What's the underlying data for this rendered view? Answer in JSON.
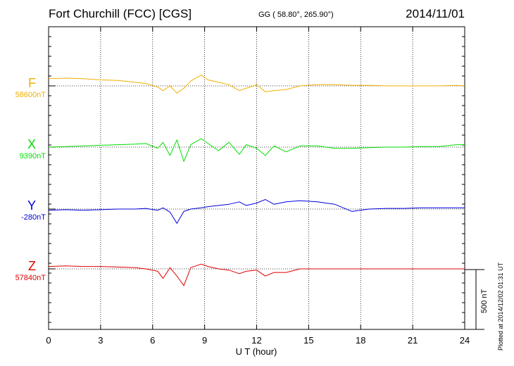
{
  "header": {
    "title": "Fort Churchill (FCC)  [CGS]",
    "coords": "GG ( 58.80°, 265.90°)",
    "date": "2014/11/01"
  },
  "footer_note": "Plotted at 2014/12/02 01:31  UT",
  "chart_data": {
    "type": "line",
    "xlabel": "U T (hour)",
    "xlim": [
      0,
      24
    ],
    "xticks": [
      0,
      3,
      6,
      9,
      12,
      15,
      18,
      21,
      24
    ],
    "grid": "dotted vertical at 3-hour intervals",
    "scale_bar": {
      "value": 500,
      "unit": "nT",
      "label": "500 nT"
    },
    "series": [
      {
        "name": "F",
        "baseline_label": "58600nT",
        "color": "#f0b000",
        "x": [
          0,
          1,
          2,
          3,
          4,
          5,
          5.6,
          6.3,
          6.6,
          7.0,
          7.4,
          7.8,
          8.2,
          8.8,
          9.2,
          9.8,
          10.4,
          11.0,
          11.4,
          12.0,
          12.5,
          13.0,
          13.7,
          14.5,
          15.5,
          16.5,
          17.5,
          18.5,
          19.5,
          20.5,
          21.5,
          22.5,
          23.5,
          24
        ],
        "values": [
          60,
          65,
          60,
          50,
          45,
          30,
          20,
          -10,
          -40,
          0,
          -60,
          -20,
          40,
          90,
          50,
          30,
          10,
          -40,
          -20,
          10,
          -50,
          -40,
          -30,
          0,
          10,
          10,
          5,
          5,
          0,
          0,
          0,
          0,
          5,
          0
        ]
      },
      {
        "name": "X",
        "baseline_label": "9390nT",
        "color": "#00dd00",
        "x": [
          0,
          1,
          2,
          3,
          4,
          5,
          5.6,
          6.3,
          6.6,
          7.0,
          7.4,
          7.8,
          8.2,
          8.8,
          9.2,
          9.8,
          10.4,
          11.0,
          11.4,
          12.0,
          12.5,
          13.0,
          13.7,
          14.5,
          15.5,
          16.5,
          17.5,
          18.5,
          19.5,
          20.5,
          21.5,
          22.5,
          23.5,
          24
        ],
        "values": [
          0,
          5,
          10,
          15,
          20,
          25,
          30,
          -10,
          40,
          -70,
          60,
          -120,
          20,
          70,
          30,
          -30,
          40,
          -60,
          20,
          -10,
          -70,
          10,
          -40,
          10,
          10,
          -10,
          -10,
          -5,
          0,
          0,
          5,
          5,
          20,
          20
        ]
      },
      {
        "name": "Y",
        "baseline_label": "-280nT",
        "color": "#0000dd",
        "x": [
          0,
          1,
          2,
          3,
          4,
          5,
          5.6,
          6.3,
          6.6,
          7.0,
          7.4,
          7.8,
          8.2,
          8.8,
          9.2,
          9.8,
          10.4,
          11.0,
          11.4,
          12.0,
          12.5,
          13.0,
          13.7,
          14.5,
          15.5,
          16.5,
          17.5,
          18.5,
          19.5,
          20.5,
          21.5,
          22.5,
          23.5,
          24
        ],
        "values": [
          -10,
          -5,
          -10,
          -5,
          0,
          0,
          5,
          -10,
          10,
          -25,
          -120,
          -20,
          0,
          10,
          20,
          30,
          40,
          60,
          30,
          50,
          80,
          40,
          60,
          70,
          60,
          40,
          -20,
          0,
          5,
          5,
          10,
          10,
          10,
          10
        ]
      },
      {
        "name": "Z",
        "baseline_label": "57840nT",
        "color": "#dd0000",
        "x": [
          0,
          1,
          2,
          3,
          4,
          5,
          5.6,
          6.3,
          6.6,
          7.0,
          7.4,
          7.8,
          8.2,
          8.8,
          9.2,
          9.8,
          10.4,
          11.0,
          11.4,
          12.0,
          12.5,
          13.0,
          13.7,
          14.5,
          15.5,
          16.5,
          17.5,
          18.5,
          19.5,
          20.5,
          21.5,
          22.5,
          23.5,
          24
        ],
        "values": [
          20,
          25,
          20,
          20,
          15,
          10,
          0,
          -20,
          -80,
          10,
          -60,
          -140,
          10,
          40,
          20,
          0,
          -10,
          -40,
          -20,
          -10,
          -60,
          -30,
          -30,
          0,
          0,
          0,
          0,
          0,
          0,
          0,
          0,
          0,
          0,
          0
        ]
      }
    ]
  }
}
